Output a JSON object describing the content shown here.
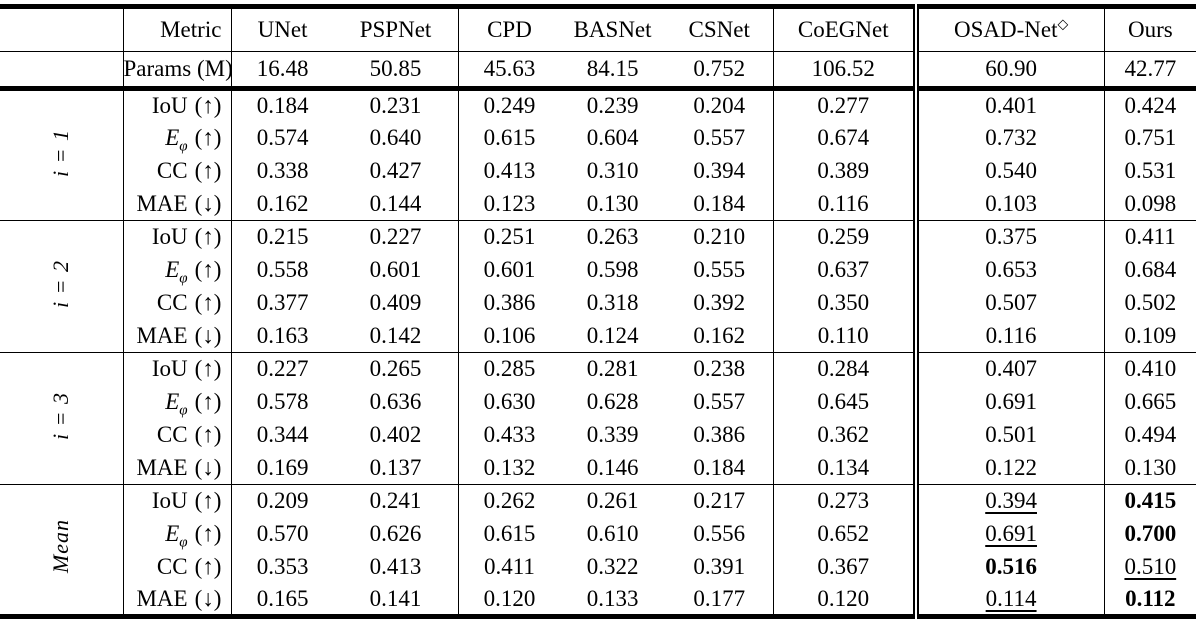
{
  "table": {
    "head": {
      "metric_label": "Metric",
      "params_label": "Params (M)",
      "columns": [
        {
          "name": "UNet",
          "sup": ""
        },
        {
          "name": "PSPNet",
          "sup": ""
        },
        {
          "name": "CPD",
          "sup": ""
        },
        {
          "name": "BASNet",
          "sup": ""
        },
        {
          "name": "CSNet",
          "sup": ""
        },
        {
          "name": "CoEGNet",
          "sup": ""
        },
        {
          "name": "OSAD-Net",
          "sup": "◇"
        },
        {
          "name": "Ours",
          "sup": ""
        }
      ],
      "params": [
        "16.48",
        "50.85",
        "45.63",
        "84.15",
        "0.752",
        "106.52",
        "60.90",
        "42.77"
      ]
    },
    "blocks": [
      {
        "group": "i = 1",
        "rows": [
          {
            "name": "IoU",
            "sub": "",
            "italic": false,
            "arrow": "(↑)",
            "values": [
              "0.184",
              "0.231",
              "0.249",
              "0.239",
              "0.204",
              "0.277",
              "0.401",
              "0.424"
            ],
            "styles": [
              "",
              "",
              "",
              "",
              "",
              "",
              "",
              ""
            ]
          },
          {
            "name": "E",
            "sub": "φ",
            "italic": true,
            "arrow": "(↑)",
            "values": [
              "0.574",
              "0.640",
              "0.615",
              "0.604",
              "0.557",
              "0.674",
              "0.732",
              "0.751"
            ],
            "styles": [
              "",
              "",
              "",
              "",
              "",
              "",
              "",
              ""
            ]
          },
          {
            "name": "CC",
            "sub": "",
            "italic": false,
            "arrow": "(↑)",
            "values": [
              "0.338",
              "0.427",
              "0.413",
              "0.310",
              "0.394",
              "0.389",
              "0.540",
              "0.531"
            ],
            "styles": [
              "",
              "",
              "",
              "",
              "",
              "",
              "",
              ""
            ]
          },
          {
            "name": "MAE",
            "sub": "",
            "italic": false,
            "arrow": "(↓)",
            "values": [
              "0.162",
              "0.144",
              "0.123",
              "0.130",
              "0.184",
              "0.116",
              "0.103",
              "0.098"
            ],
            "styles": [
              "",
              "",
              "",
              "",
              "",
              "",
              "",
              ""
            ]
          }
        ]
      },
      {
        "group": "i = 2",
        "rows": [
          {
            "name": "IoU",
            "sub": "",
            "italic": false,
            "arrow": "(↑)",
            "values": [
              "0.215",
              "0.227",
              "0.251",
              "0.263",
              "0.210",
              "0.259",
              "0.375",
              "0.411"
            ],
            "styles": [
              "",
              "",
              "",
              "",
              "",
              "",
              "",
              ""
            ]
          },
          {
            "name": "E",
            "sub": "φ",
            "italic": true,
            "arrow": "(↑)",
            "values": [
              "0.558",
              "0.601",
              "0.601",
              "0.598",
              "0.555",
              "0.637",
              "0.653",
              "0.684"
            ],
            "styles": [
              "",
              "",
              "",
              "",
              "",
              "",
              "",
              ""
            ]
          },
          {
            "name": "CC",
            "sub": "",
            "italic": false,
            "arrow": "(↑)",
            "values": [
              "0.377",
              "0.409",
              "0.386",
              "0.318",
              "0.392",
              "0.350",
              "0.507",
              "0.502"
            ],
            "styles": [
              "",
              "",
              "",
              "",
              "",
              "",
              "",
              ""
            ]
          },
          {
            "name": "MAE",
            "sub": "",
            "italic": false,
            "arrow": "(↓)",
            "values": [
              "0.163",
              "0.142",
              "0.106",
              "0.124",
              "0.162",
              "0.110",
              "0.116",
              "0.109"
            ],
            "styles": [
              "",
              "",
              "",
              "",
              "",
              "",
              "",
              ""
            ]
          }
        ]
      },
      {
        "group": "i = 3",
        "rows": [
          {
            "name": "IoU",
            "sub": "",
            "italic": false,
            "arrow": "(↑)",
            "values": [
              "0.227",
              "0.265",
              "0.285",
              "0.281",
              "0.238",
              "0.284",
              "0.407",
              "0.410"
            ],
            "styles": [
              "",
              "",
              "",
              "",
              "",
              "",
              "",
              ""
            ]
          },
          {
            "name": "E",
            "sub": "φ",
            "italic": true,
            "arrow": "(↑)",
            "values": [
              "0.578",
              "0.636",
              "0.630",
              "0.628",
              "0.557",
              "0.645",
              "0.691",
              "0.665"
            ],
            "styles": [
              "",
              "",
              "",
              "",
              "",
              "",
              "",
              ""
            ]
          },
          {
            "name": "CC",
            "sub": "",
            "italic": false,
            "arrow": "(↑)",
            "values": [
              "0.344",
              "0.402",
              "0.433",
              "0.339",
              "0.386",
              "0.362",
              "0.501",
              "0.494"
            ],
            "styles": [
              "",
              "",
              "",
              "",
              "",
              "",
              "",
              ""
            ]
          },
          {
            "name": "MAE",
            "sub": "",
            "italic": false,
            "arrow": "(↓)",
            "values": [
              "0.169",
              "0.137",
              "0.132",
              "0.146",
              "0.184",
              "0.134",
              "0.122",
              "0.130"
            ],
            "styles": [
              "",
              "",
              "",
              "",
              "",
              "",
              "",
              ""
            ]
          }
        ]
      },
      {
        "group": "Mean",
        "rows": [
          {
            "name": "IoU",
            "sub": "",
            "italic": false,
            "arrow": "(↑)",
            "values": [
              "0.209",
              "0.241",
              "0.262",
              "0.261",
              "0.217",
              "0.273",
              "0.394",
              "0.415"
            ],
            "styles": [
              "",
              "",
              "",
              "",
              "",
              "",
              "u",
              "b"
            ]
          },
          {
            "name": "E",
            "sub": "φ",
            "italic": true,
            "arrow": "(↑)",
            "values": [
              "0.570",
              "0.626",
              "0.615",
              "0.610",
              "0.556",
              "0.652",
              "0.691",
              "0.700"
            ],
            "styles": [
              "",
              "",
              "",
              "",
              "",
              "",
              "u",
              "b"
            ]
          },
          {
            "name": "CC",
            "sub": "",
            "italic": false,
            "arrow": "(↑)",
            "values": [
              "0.353",
              "0.413",
              "0.411",
              "0.322",
              "0.391",
              "0.367",
              "0.516",
              "0.510"
            ],
            "styles": [
              "",
              "",
              "",
              "",
              "",
              "",
              "b",
              "u"
            ]
          },
          {
            "name": "MAE",
            "sub": "",
            "italic": false,
            "arrow": "(↓)",
            "values": [
              "0.165",
              "0.141",
              "0.120",
              "0.133",
              "0.177",
              "0.120",
              "0.114",
              "0.112"
            ],
            "styles": [
              "",
              "",
              "",
              "",
              "",
              "",
              "u",
              "b"
            ]
          }
        ]
      }
    ]
  }
}
